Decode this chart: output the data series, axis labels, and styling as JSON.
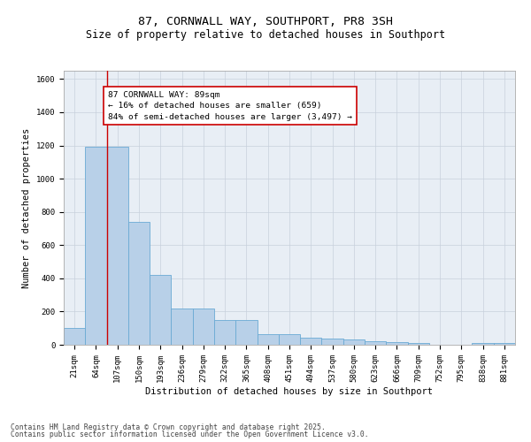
{
  "title_line1": "87, CORNWALL WAY, SOUTHPORT, PR8 3SH",
  "title_line2": "Size of property relative to detached houses in Southport",
  "xlabel": "Distribution of detached houses by size in Southport",
  "ylabel": "Number of detached properties",
  "categories": [
    "21sqm",
    "64sqm",
    "107sqm",
    "150sqm",
    "193sqm",
    "236sqm",
    "279sqm",
    "322sqm",
    "365sqm",
    "408sqm",
    "451sqm",
    "494sqm",
    "537sqm",
    "580sqm",
    "623sqm",
    "666sqm",
    "709sqm",
    "752sqm",
    "795sqm",
    "838sqm",
    "881sqm"
  ],
  "values": [
    100,
    1190,
    1190,
    740,
    420,
    220,
    220,
    150,
    150,
    65,
    65,
    45,
    35,
    30,
    20,
    15,
    10,
    0,
    0,
    10,
    10
  ],
  "bar_color": "#b8d0e8",
  "bar_edge_color": "#6aaad4",
  "grid_color": "#c8d0dc",
  "bg_color": "#e8eef5",
  "annotation_line1": "87 CORNWALL WAY: 89sqm",
  "annotation_line2": "← 16% of detached houses are smaller (659)",
  "annotation_line3": "84% of semi-detached houses are larger (3,497) →",
  "annotation_box_color": "#ffffff",
  "annotation_box_edge_color": "#cc0000",
  "vline_x_index": 1.5,
  "vline_color": "#cc0000",
  "footer_line1": "Contains HM Land Registry data © Crown copyright and database right 2025.",
  "footer_line2": "Contains public sector information licensed under the Open Government Licence v3.0.",
  "ylim": [
    0,
    1650
  ],
  "yticks": [
    0,
    200,
    400,
    600,
    800,
    1000,
    1200,
    1400,
    1600
  ],
  "title1_fontsize": 9.5,
  "title2_fontsize": 8.5,
  "annotation_fontsize": 6.8,
  "footer_fontsize": 5.8,
  "xlabel_fontsize": 7.5,
  "ylabel_fontsize": 7.5,
  "tick_fontsize": 6.5
}
